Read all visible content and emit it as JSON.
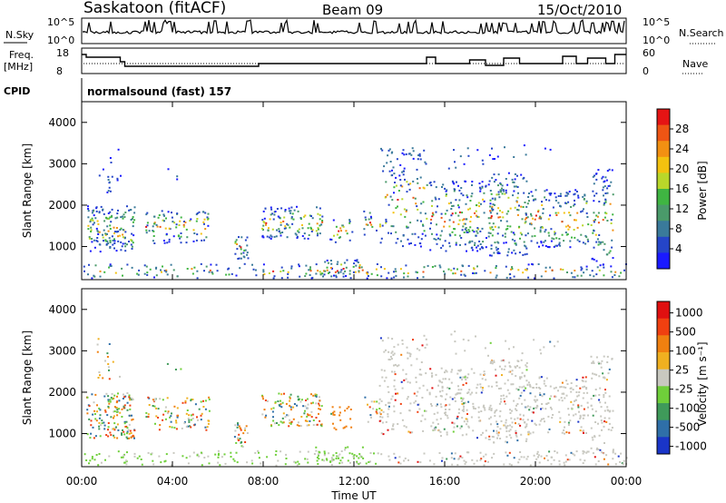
{
  "header": {
    "title": "Saskatoon (fitACF)",
    "beam": "Beam 09",
    "date": "15/Oct/2010"
  },
  "status_panel": {
    "nsky_label": "N.Sky",
    "nsky_ticks": [
      "10^5",
      "10^0"
    ],
    "nsearch_label": "N.Search",
    "nsearch_ticks": [
      "10^5",
      "10^0"
    ],
    "freq_label": "Freq.",
    "freq_unit": "[MHz]",
    "freq_ticks": [
      "18",
      "8"
    ],
    "nave_ticks": [
      "60",
      "0"
    ],
    "nave_label": "Nave",
    "cpid_label": "CPID",
    "cpid_value": "normalsound (fast) 157"
  },
  "chart_data": [
    {
      "type": "heatmap",
      "name": "power",
      "ylabel": "Slant Range [km]",
      "yticks": [
        "1000",
        "2000",
        "3000",
        "4000"
      ],
      "ylim": [
        200,
        4500
      ],
      "xlim_hours": [
        0,
        24
      ],
      "colorbar": {
        "label": "Power [dB]",
        "ticks": [
          "4",
          "8",
          "12",
          "16",
          "20",
          "24",
          "28"
        ],
        "colors": [
          "#1a1aff",
          "#2545c8",
          "#3a7a9a",
          "#4a9a6a",
          "#3fb542",
          "#b9d72a",
          "#f3c20f",
          "#f29012",
          "#ee5514",
          "#e51414"
        ]
      }
    },
    {
      "type": "heatmap",
      "name": "velocity",
      "ylabel": "Slant Range [km]",
      "yticks": [
        "1000",
        "2000",
        "3000",
        "4000"
      ],
      "ylim": [
        200,
        4500
      ],
      "xlim_hours": [
        0,
        24
      ],
      "xlabel": "Time UT",
      "xticks": [
        "00:00",
        "04:00",
        "08:00",
        "12:00",
        "16:00",
        "20:00",
        "00:00"
      ],
      "colorbar": {
        "label": "Velocity [m s⁻¹]",
        "ticks": [
          "1000",
          "500",
          "100",
          "25",
          "-25",
          "-100",
          "-500",
          "-1000"
        ],
        "colors": [
          "#1a35c8",
          "#2f6fa8",
          "#3f9a5a",
          "#6fcf3a",
          "#c8c8c0",
          "#f0b020",
          "#f08010",
          "#f04010",
          "#e01010"
        ]
      }
    }
  ]
}
